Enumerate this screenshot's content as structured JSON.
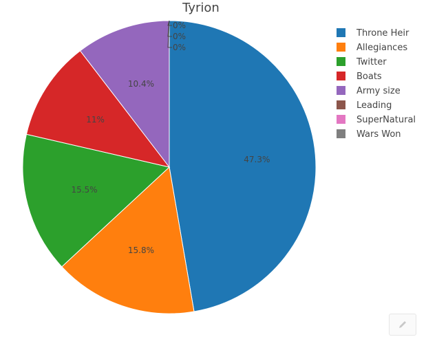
{
  "chart_data": {
    "type": "pie",
    "title": "Tyrion",
    "slices": [
      {
        "label": "Throne Heir",
        "value": 47.3,
        "text": "47.3%",
        "color": "#1f77b4"
      },
      {
        "label": "Allegiances",
        "value": 15.8,
        "text": "15.8%",
        "color": "#ff7f0e"
      },
      {
        "label": "Twitter",
        "value": 15.5,
        "text": "15.5%",
        "color": "#2ca02c"
      },
      {
        "label": "Boats",
        "value": 11,
        "text": "11%",
        "color": "#d62728"
      },
      {
        "label": "Army size",
        "value": 10.4,
        "text": "10.4%",
        "color": "#9467bd"
      },
      {
        "label": "Leading",
        "value": 0,
        "text": "0%",
        "color": "#8c564b"
      },
      {
        "label": "SuperNatural",
        "value": 0,
        "text": "0%",
        "color": "#e377c2"
      },
      {
        "label": "Wars Won",
        "value": 0,
        "text": "0%",
        "color": "#7f7f7f"
      }
    ],
    "direction": "clockwise",
    "start": "top",
    "legend_position": "top-right"
  },
  "toolbar": {
    "edit_icon": "pencil-icon"
  }
}
